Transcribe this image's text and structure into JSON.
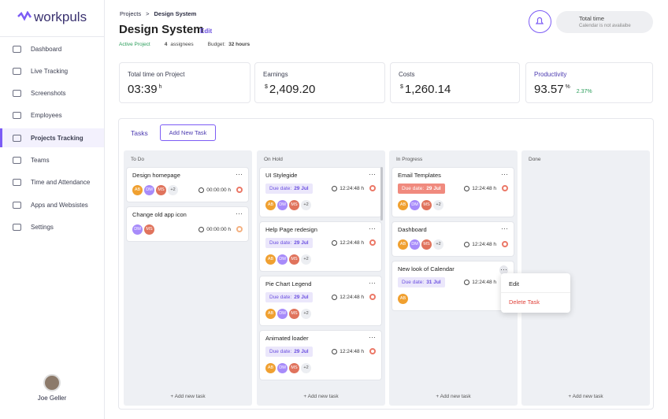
{
  "sidebar": {
    "brand": "workpuls",
    "nav": [
      "Dashboard",
      "Live Tracking",
      "Screenshots",
      "Employees",
      "Projects Tracking",
      "Teams",
      "Time and Attendance",
      "Apps and Websistes",
      "Settings"
    ],
    "active": 4,
    "user": "Joe Geller"
  },
  "header": {
    "breadcrumb": [
      "Projects",
      "Design System"
    ],
    "title": "Design System",
    "edit": "Edit",
    "status": "Active Project",
    "assignees_count": "4",
    "assignees": "assignees",
    "budget_label": "Budget:",
    "budget": "32 hours",
    "total_time": "Total time",
    "calendar_note": "Calendar is not availaibe"
  },
  "stats": [
    {
      "label": "Total time on Project",
      "value": "03:39",
      "unit": "h"
    },
    {
      "label": "Earnings",
      "prefix": "$",
      "value": "2,409.20"
    },
    {
      "label": "Costs",
      "prefix": "$",
      "value": "1,260.14"
    },
    {
      "label": "Productivity",
      "value": "93.57",
      "unit": "%",
      "change": "2.37%"
    }
  ],
  "board": {
    "tab": "Tasks",
    "add_button": "Add New Task",
    "add_task": "+ Add new task",
    "due_label": "Due date:",
    "columns": [
      {
        "name": "To Do",
        "tasks": [
          {
            "title": "Design homepage",
            "avatars": [
              "AB",
              "DM",
              "MS"
            ],
            "more": "+2",
            "time": "00:00:00 h",
            "icon_color": "#e8604c"
          },
          {
            "title": "Change old app icon",
            "avatars": [
              "DM",
              "MS"
            ],
            "time": "00:00:00 h",
            "icon_color": "#f2a36b"
          }
        ]
      },
      {
        "name": "On Hold",
        "tasks": [
          {
            "title": "UI Stylegide",
            "due": "29 Jul",
            "time": "12:24:48 h",
            "avatars": [
              "AB",
              "DM",
              "MS"
            ],
            "more": "+2",
            "icon_color": "#e8604c"
          },
          {
            "title": "Help Page redesign",
            "due": "29 Jul",
            "time": "12:24:48 h",
            "avatars": [
              "AB",
              "DM",
              "MS"
            ],
            "more": "+2",
            "icon_color": "#e8604c"
          },
          {
            "title": "Pie Chart Legend",
            "due": "29 Jul",
            "time": "12:24:48 h",
            "avatars": [
              "AB",
              "DM",
              "MS"
            ],
            "more": "+2",
            "icon_color": "#e8604c"
          },
          {
            "title": "Animated loader",
            "due": "29 Jul",
            "time": "12:24:48 h",
            "avatars": [
              "AB",
              "DM",
              "MS"
            ],
            "more": "+2",
            "icon_color": "#e8604c"
          }
        ]
      },
      {
        "name": "In Progress",
        "tasks": [
          {
            "title": "Email Templates",
            "due": "29 Jul",
            "due_color": "#f08a7e",
            "time": "12:24:48 h",
            "avatars": [
              "AB",
              "DM",
              "MS"
            ],
            "more": "+2",
            "icon_color": "#e8604c"
          },
          {
            "title": "Dashboard",
            "avatars": [
              "AB",
              "DM",
              "MS"
            ],
            "more": "+2",
            "time": "12:24:48 h",
            "icon_color": "#e8604c"
          },
          {
            "title": "New look of Calendar",
            "due": "31 Jul",
            "time": "12:24:48 h",
            "avatars": [
              "AB"
            ],
            "icon_color": "#e8604c"
          }
        ]
      },
      {
        "name": "Done",
        "tasks": []
      }
    ]
  },
  "menu": {
    "items": [
      "Edit",
      "Delete Task"
    ]
  }
}
